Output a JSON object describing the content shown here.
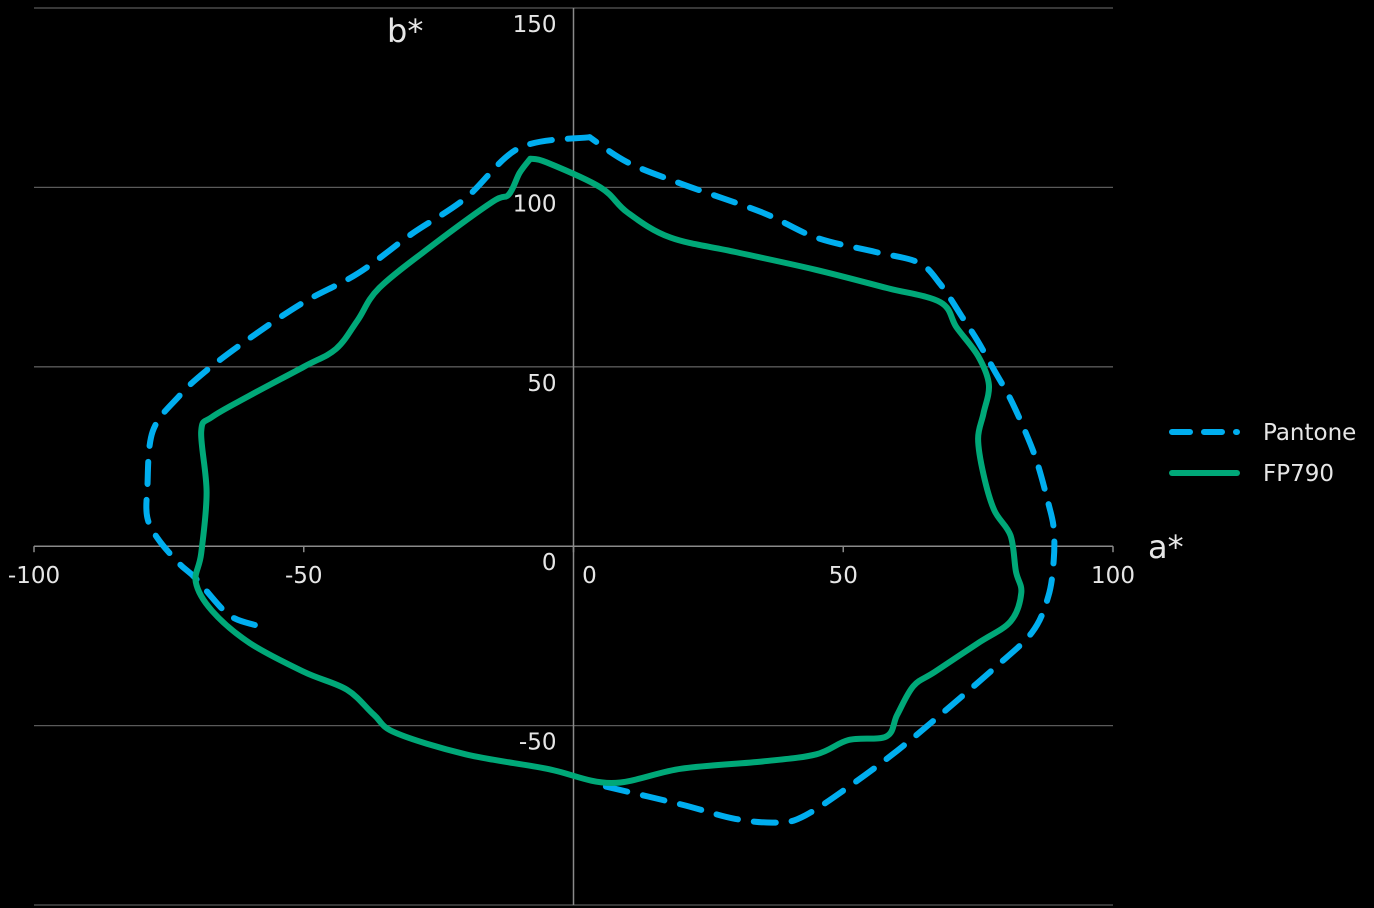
{
  "chart_data": {
    "type": "line",
    "title": "",
    "xlabel": "a*",
    "ylabel": "b*",
    "xlim": [
      -100,
      100
    ],
    "ylim": [
      -100,
      150
    ],
    "x_ticks": [
      -100,
      -50,
      0,
      50,
      100
    ],
    "y_ticks": [
      150,
      100,
      50,
      0,
      -50,
      -100
    ],
    "x_tick_labels": [
      "-100",
      "-50",
      "0",
      "50",
      "100"
    ],
    "y_tick_labels": [
      "150",
      "100",
      "50",
      "0",
      "-50",
      "-100"
    ],
    "grid": "horizontal",
    "legend_position": "right",
    "series": [
      {
        "name": "Pantone",
        "color": "#00AEEF",
        "style": "dashed",
        "points": [
          [
            3,
            114
          ],
          [
            -10,
            111
          ],
          [
            -20,
            97
          ],
          [
            -30,
            87
          ],
          [
            -40,
            76
          ],
          [
            -50,
            68
          ],
          [
            -60,
            58
          ],
          [
            -68,
            49
          ],
          [
            -73,
            42
          ],
          [
            -78,
            32
          ],
          [
            -79,
            16
          ],
          [
            -79,
            8
          ],
          [
            -77,
            2
          ],
          [
            -73,
            -5
          ],
          [
            -70,
            -9
          ],
          [
            -64,
            -19
          ],
          [
            -59,
            -22
          ]
        ]
      },
      {
        "name": "Pantone",
        "color": "#00AEEF",
        "style": "dashed",
        "points": [
          [
            6,
            -67
          ],
          [
            20,
            -72
          ],
          [
            30,
            -76
          ],
          [
            38,
            -77
          ],
          [
            43,
            -75
          ],
          [
            52,
            -66
          ],
          [
            60,
            -57
          ],
          [
            68,
            -47
          ],
          [
            78,
            -34
          ],
          [
            85,
            -24
          ],
          [
            88,
            -14
          ],
          [
            89,
            -4
          ],
          [
            89,
            5
          ],
          [
            88,
            12
          ],
          [
            86,
            23
          ],
          [
            84,
            31
          ],
          [
            81,
            41
          ],
          [
            78,
            49
          ],
          [
            75,
            57
          ],
          [
            72,
            64
          ],
          [
            68,
            73
          ],
          [
            64,
            79
          ],
          [
            56,
            82
          ],
          [
            45,
            86
          ],
          [
            35,
            93
          ],
          [
            20,
            101
          ],
          [
            10,
            107
          ],
          [
            3,
            114
          ]
        ]
      },
      {
        "name": "FP790",
        "color": "#00A878",
        "style": "solid",
        "points": [
          [
            -8,
            108
          ],
          [
            -5,
            107
          ],
          [
            5,
            100
          ],
          [
            10,
            93
          ],
          [
            18,
            86
          ],
          [
            30,
            82
          ],
          [
            45,
            77
          ],
          [
            58,
            72
          ],
          [
            68,
            68
          ],
          [
            71,
            61
          ],
          [
            75,
            53
          ],
          [
            77,
            45
          ],
          [
            76,
            37
          ],
          [
            75,
            30
          ],
          [
            76,
            20
          ],
          [
            78,
            10
          ],
          [
            81,
            3
          ],
          [
            82,
            -7
          ],
          [
            83,
            -13
          ],
          [
            81,
            -21
          ],
          [
            75,
            -27
          ],
          [
            67,
            -35
          ],
          [
            63,
            -39
          ],
          [
            60,
            -47
          ],
          [
            58,
            -53
          ],
          [
            51,
            -54
          ],
          [
            45,
            -58
          ],
          [
            35,
            -60
          ],
          [
            20,
            -62
          ],
          [
            7,
            -66
          ],
          [
            -5,
            -62
          ],
          [
            -20,
            -58
          ],
          [
            -33,
            -52
          ],
          [
            -37,
            -47
          ],
          [
            -42,
            -40
          ],
          [
            -50,
            -35
          ],
          [
            -60,
            -27
          ],
          [
            -67,
            -18
          ],
          [
            -70,
            -10
          ],
          [
            -69,
            -2
          ],
          [
            -68,
            15
          ],
          [
            -69,
            32
          ],
          [
            -67,
            36
          ],
          [
            -60,
            42
          ],
          [
            -50,
            50
          ],
          [
            -44,
            55
          ],
          [
            -40,
            63
          ],
          [
            -36,
            72
          ],
          [
            -26,
            84
          ],
          [
            -15,
            96
          ],
          [
            -12,
            98
          ],
          [
            -10,
            104
          ],
          [
            -8,
            108
          ]
        ]
      }
    ],
    "legend": [
      {
        "label": "Pantone",
        "color": "#00AEEF",
        "style": "dashed"
      },
      {
        "label": "FP790",
        "color": "#00A878",
        "style": "solid"
      }
    ]
  }
}
